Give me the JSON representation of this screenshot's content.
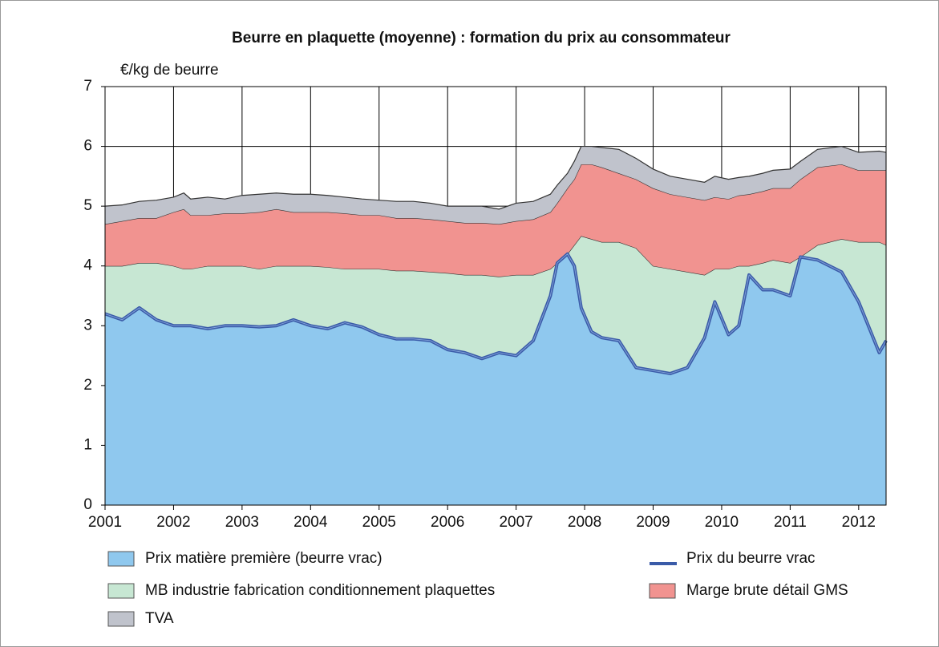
{
  "chart_data": {
    "type": "area",
    "stacked": true,
    "title": "Beurre en plaquette (moyenne) : formation du prix au consommateur",
    "y_label": "€/kg de beurre",
    "x": [
      2001.0,
      2001.25,
      2001.5,
      2001.75,
      2002.0,
      2002.15,
      2002.25,
      2002.5,
      2002.75,
      2003.0,
      2003.25,
      2003.5,
      2003.75,
      2004.0,
      2004.25,
      2004.5,
      2004.75,
      2005.0,
      2005.25,
      2005.5,
      2005.75,
      2006.0,
      2006.25,
      2006.5,
      2006.75,
      2007.0,
      2007.25,
      2007.5,
      2007.6,
      2007.75,
      2007.85,
      2007.95,
      2008.1,
      2008.25,
      2008.5,
      2008.75,
      2009.0,
      2009.25,
      2009.5,
      2009.75,
      2009.9,
      2010.1,
      2010.25,
      2010.4,
      2010.6,
      2010.75,
      2011.0,
      2011.15,
      2011.4,
      2011.75,
      2012.0,
      2012.3,
      2012.4
    ],
    "series": [
      {
        "name": "Prix matière première (beurre vrac)",
        "color": "#8fc8ee",
        "kind": "area",
        "values": [
          3.2,
          3.1,
          3.3,
          3.1,
          3.0,
          3.0,
          3.0,
          2.95,
          3.0,
          3.0,
          2.98,
          3.0,
          3.1,
          3.0,
          2.95,
          3.05,
          2.98,
          2.85,
          2.78,
          2.78,
          2.75,
          2.6,
          2.55,
          2.45,
          2.55,
          2.5,
          2.75,
          3.5,
          4.05,
          4.2,
          4.0,
          3.3,
          2.9,
          2.8,
          2.75,
          2.3,
          2.25,
          2.2,
          2.3,
          2.8,
          3.4,
          2.85,
          3.0,
          3.85,
          3.6,
          3.6,
          3.5,
          4.15,
          4.1,
          3.9,
          3.4,
          2.55,
          2.75
        ]
      },
      {
        "name": "MB industrie fabrication conditionnement plaquettes",
        "color": "#c7e7d3",
        "kind": "area",
        "values": [
          0.8,
          0.9,
          0.75,
          0.95,
          1.0,
          0.95,
          0.95,
          1.05,
          1.0,
          1.0,
          0.97,
          1.0,
          0.9,
          1.0,
          1.03,
          0.9,
          0.97,
          1.1,
          1.14,
          1.14,
          1.15,
          1.28,
          1.3,
          1.4,
          1.27,
          1.35,
          1.1,
          0.45,
          0,
          0,
          0.35,
          1.2,
          1.55,
          1.6,
          1.65,
          2.0,
          1.75,
          1.75,
          1.6,
          1.05,
          0.55,
          1.1,
          1.0,
          0.15,
          0.45,
          0.5,
          0.55,
          0,
          0.25,
          0.55,
          1.0,
          1.85,
          1.6
        ]
      },
      {
        "name": "Marge brute détail GMS",
        "color": "#f19390",
        "kind": "area",
        "values": [
          0.7,
          0.75,
          0.75,
          0.75,
          0.9,
          1.0,
          0.9,
          0.85,
          0.88,
          0.88,
          0.95,
          0.95,
          0.9,
          0.9,
          0.92,
          0.93,
          0.9,
          0.9,
          0.88,
          0.88,
          0.88,
          0.87,
          0.87,
          0.87,
          0.88,
          0.9,
          0.93,
          0.95,
          1.0,
          1.1,
          1.1,
          1.2,
          1.25,
          1.25,
          1.15,
          1.15,
          1.3,
          1.25,
          1.25,
          1.25,
          1.2,
          1.17,
          1.18,
          1.2,
          1.2,
          1.2,
          1.25,
          1.3,
          1.3,
          1.25,
          1.2,
          1.2,
          1.25
        ]
      },
      {
        "name": "TVA",
        "color": "#c0c3cc",
        "kind": "area",
        "values": [
          0.3,
          0.27,
          0.28,
          0.3,
          0.25,
          0.27,
          0.27,
          0.3,
          0.24,
          0.3,
          0.3,
          0.27,
          0.3,
          0.3,
          0.28,
          0.27,
          0.27,
          0.25,
          0.28,
          0.28,
          0.27,
          0.25,
          0.28,
          0.28,
          0.25,
          0.3,
          0.3,
          0.3,
          0.3,
          0.25,
          0.3,
          0.3,
          0.3,
          0.33,
          0.4,
          0.35,
          0.32,
          0.3,
          0.3,
          0.3,
          0.35,
          0.33,
          0.3,
          0.3,
          0.3,
          0.3,
          0.32,
          0.3,
          0.3,
          0.3,
          0.3,
          0.32,
          0.3
        ]
      },
      {
        "name": "Prix du beurre vrac",
        "color": "#3a5ba8",
        "kind": "line",
        "values": [
          3.2,
          3.1,
          3.3,
          3.1,
          3.0,
          3.0,
          3.0,
          2.95,
          3.0,
          3.0,
          2.98,
          3.0,
          3.1,
          3.0,
          2.95,
          3.05,
          2.98,
          2.85,
          2.78,
          2.78,
          2.75,
          2.6,
          2.55,
          2.45,
          2.55,
          2.5,
          2.75,
          3.5,
          4.05,
          4.2,
          4.0,
          3.3,
          2.9,
          2.8,
          2.75,
          2.3,
          2.25,
          2.2,
          2.3,
          2.8,
          3.4,
          2.85,
          3.0,
          3.85,
          3.6,
          3.6,
          3.5,
          4.15,
          4.1,
          3.9,
          3.4,
          2.55,
          2.75
        ]
      }
    ],
    "xlim": [
      2001,
      2012.4
    ],
    "xticks": [
      2001,
      2002,
      2003,
      2004,
      2005,
      2006,
      2007,
      2008,
      2009,
      2010,
      2011,
      2012
    ],
    "ylim": [
      0,
      7
    ],
    "yticks": [
      0,
      1,
      2,
      3,
      4,
      5,
      6,
      7
    ],
    "grid": true
  }
}
